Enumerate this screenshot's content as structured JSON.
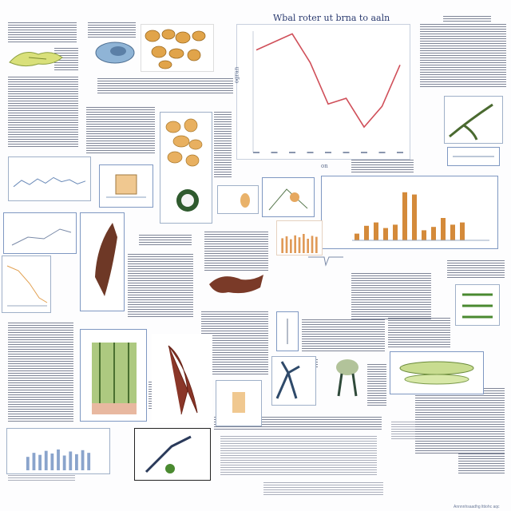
{
  "main_chart": {
    "title": "Wbal roter ut brna to aaln",
    "ylabel": "ogran",
    "xlabel": "on"
  },
  "footer_caption": "Annnnhsaadhg lttiohc aqc",
  "chart_data": [
    {
      "type": "line",
      "title": "Wbal roter ut brna to aaln",
      "xlabel": "on",
      "ylabel": "ogran",
      "x": [
        1,
        2,
        3,
        4,
        5,
        6,
        7,
        8,
        9
      ],
      "values": [
        85,
        92,
        99,
        74,
        38,
        43,
        18,
        36,
        72
      ],
      "ylim": [
        0,
        100
      ],
      "color": "#d0505a",
      "grid": false
    },
    {
      "type": "bar",
      "values": [
        12,
        26,
        32,
        22,
        28,
        86,
        82,
        18,
        24,
        40,
        28,
        32
      ],
      "ylim": [
        0,
        100
      ],
      "color": "#d48a3a"
    },
    {
      "type": "bar",
      "values": [
        62,
        70,
        58,
        74,
        66,
        80,
        60,
        72,
        68
      ],
      "ylim": [
        0,
        100
      ],
      "color": "#e09a58"
    },
    {
      "type": "line",
      "values": [
        30,
        48,
        36,
        52,
        40,
        56,
        44,
        50,
        38,
        46
      ],
      "ylim": [
        0,
        100
      ],
      "color": "#6a8ab8"
    }
  ]
}
